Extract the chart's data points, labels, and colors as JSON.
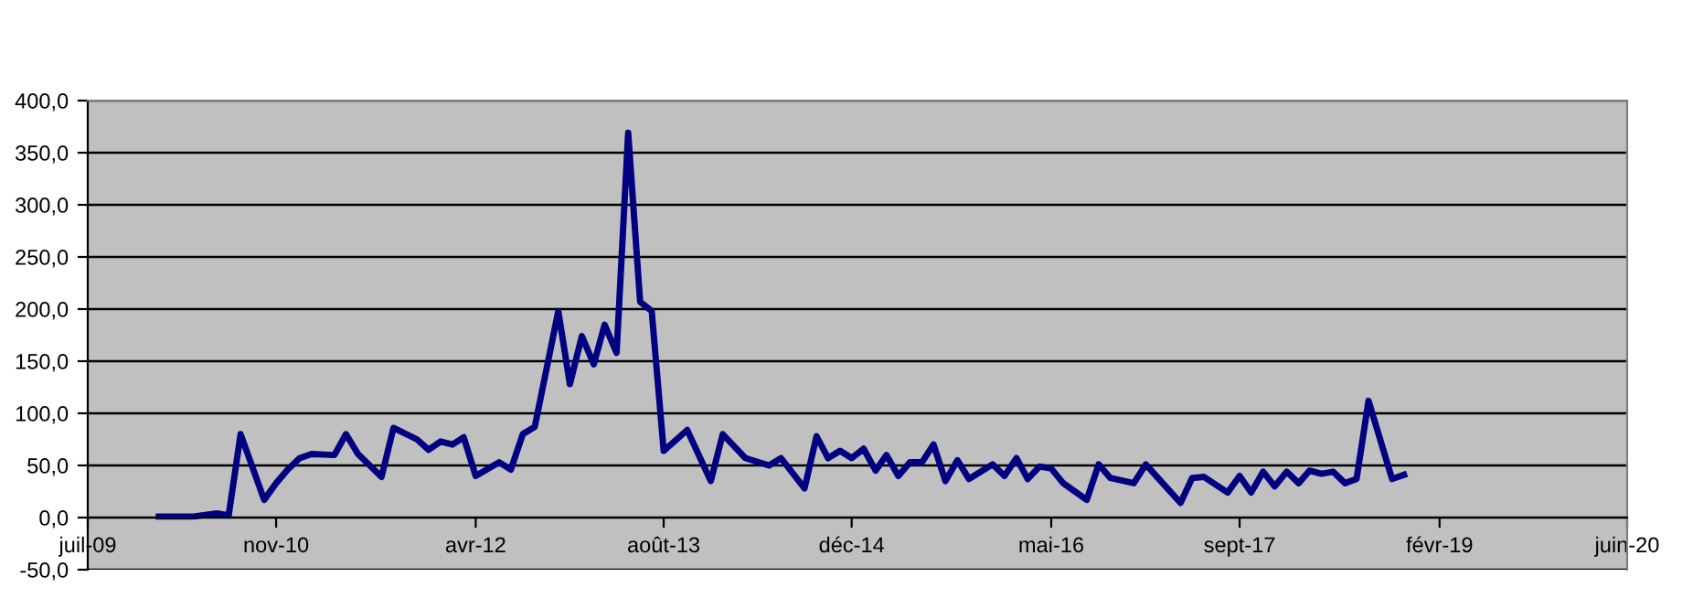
{
  "chart_data": {
    "type": "line",
    "x": [
      "2010-01",
      "2010-04",
      "2010-06",
      "2010-07",
      "2010-08",
      "2010-10",
      "2010-11",
      "2010-12",
      "2011-01",
      "2011-02",
      "2011-04",
      "2011-05",
      "2011-06",
      "2011-08",
      "2011-09",
      "2011-11",
      "2011-12",
      "2012-01",
      "2012-02",
      "2012-03",
      "2012-04",
      "2012-06",
      "2012-07",
      "2012-08",
      "2012-09",
      "2012-11",
      "2012-12",
      "2013-01",
      "2013-02",
      "2013-03",
      "2013-04",
      "2013-05",
      "2013-06",
      "2013-07",
      "2013-08",
      "2013-10",
      "2013-12",
      "2014-01",
      "2014-03",
      "2014-05",
      "2014-06",
      "2014-08",
      "2014-09",
      "2014-10",
      "2014-11",
      "2014-12",
      "2015-01",
      "2015-02",
      "2015-03",
      "2015-04",
      "2015-05",
      "2015-06",
      "2015-07",
      "2015-08",
      "2015-09",
      "2015-10",
      "2015-12",
      "2016-01",
      "2016-02",
      "2016-03",
      "2016-04",
      "2016-05",
      "2016-06",
      "2016-08",
      "2016-09",
      "2016-10",
      "2016-12",
      "2017-01",
      "2017-04",
      "2017-05",
      "2017-06",
      "2017-08",
      "2017-09",
      "2017-10",
      "2017-11",
      "2017-12",
      "2018-01",
      "2018-02",
      "2018-03",
      "2018-04",
      "2018-05",
      "2018-06",
      "2018-07",
      "2018-08",
      "2018-10",
      "2018-11"
    ],
    "series": [
      {
        "color": "#000080",
        "values": [
          1,
          1,
          4,
          2,
          80,
          17,
          33,
          46,
          57,
          61,
          60,
          80,
          61,
          39,
          86,
          75,
          65,
          73,
          70,
          77,
          40,
          53,
          46,
          80,
          87,
          198,
          128,
          174,
          147,
          185,
          158,
          369,
          207,
          198,
          64,
          84,
          35,
          80,
          57,
          50,
          57,
          28,
          78,
          57,
          64,
          57,
          66,
          45,
          60,
          40,
          53,
          53,
          70,
          35,
          55,
          37,
          51,
          40,
          57,
          37,
          49,
          47,
          33,
          17,
          51,
          38,
          33,
          51,
          14,
          38,
          39,
          24,
          40,
          24,
          44,
          30,
          44,
          33,
          45,
          42,
          44,
          33,
          37,
          112,
          37,
          41
        ]
      }
    ],
    "xlim": [
      "2009-07-01",
      "2020-06-01"
    ],
    "xticks": [
      {
        "value": "2009-07-01",
        "label": "juil-09"
      },
      {
        "value": "2010-11-01",
        "label": "nov-10"
      },
      {
        "value": "2012-04-01",
        "label": "avr-12"
      },
      {
        "value": "2013-08-01",
        "label": "août-13"
      },
      {
        "value": "2014-12-01",
        "label": "déc-14"
      },
      {
        "value": "2016-05-01",
        "label": "mai-16"
      },
      {
        "value": "2017-09-01",
        "label": "sept-17"
      },
      {
        "value": "2019-02-01",
        "label": "févr-19"
      },
      {
        "value": "2020-06-01",
        "label": "juin-20"
      }
    ],
    "ylim": [
      -50,
      400
    ],
    "yticks": [
      {
        "value": -50,
        "label": "-50,0"
      },
      {
        "value": 0,
        "label": "0,0"
      },
      {
        "value": 50,
        "label": "50,0"
      },
      {
        "value": 100,
        "label": "100,0"
      },
      {
        "value": 150,
        "label": "150,0"
      },
      {
        "value": 200,
        "label": "200,0"
      },
      {
        "value": 250,
        "label": "250,0"
      },
      {
        "value": 300,
        "label": "300,0"
      },
      {
        "value": 350,
        "label": "350,0"
      },
      {
        "value": 400,
        "label": "400,0"
      }
    ],
    "grid": "y",
    "line_style": "solid",
    "marker": "none"
  }
}
